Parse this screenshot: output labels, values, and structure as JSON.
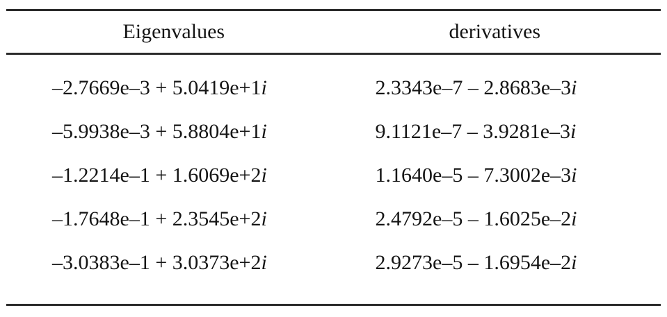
{
  "table": {
    "columns": [
      {
        "label": "Eigenvalues"
      },
      {
        "label": "derivatives"
      }
    ],
    "rows": [
      {
        "eigenvalue": {
          "text": "–2.7669e–3 + 5.0419e+1",
          "imaginary_unit": "i"
        },
        "derivative": {
          "text": "2.3343e–7 – 2.8683e–3",
          "imaginary_unit": "i"
        }
      },
      {
        "eigenvalue": {
          "text": "–5.9938e–3 + 5.8804e+1",
          "imaginary_unit": "i"
        },
        "derivative": {
          "text": "9.1121e–7 – 3.9281e–3",
          "imaginary_unit": "i"
        }
      },
      {
        "eigenvalue": {
          "text": "–1.2214e–1 + 1.6069e+2",
          "imaginary_unit": "i"
        },
        "derivative": {
          "text": "1.1640e–5 – 7.3002e–3",
          "imaginary_unit": "i"
        }
      },
      {
        "eigenvalue": {
          "text": "–1.7648e–1 + 2.3545e+2",
          "imaginary_unit": "i"
        },
        "derivative": {
          "text": "2.4792e–5 – 1.6025e–2",
          "imaginary_unit": "i"
        }
      },
      {
        "eigenvalue": {
          "text": "–3.0383e–1 + 3.0373e+2",
          "imaginary_unit": "i"
        },
        "derivative": {
          "text": "2.9273e–5 – 1.6954e–2",
          "imaginary_unit": "i"
        }
      }
    ],
    "colors": {
      "rule": "#2b2b2b",
      "text": "#151515",
      "background": "#ffffff"
    }
  }
}
